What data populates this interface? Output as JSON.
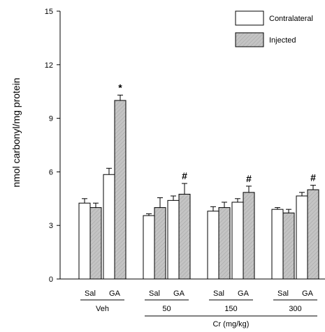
{
  "chart_data": {
    "type": "bar",
    "ylabel": "nmol carbonyl/mg protein",
    "ylim": [
      0,
      15
    ],
    "yticks": [
      "0",
      "3",
      "6",
      "9",
      "12",
      "15"
    ],
    "categories": [
      "Sal",
      "GA",
      "Sal",
      "GA",
      "Sal",
      "GA",
      "Sal",
      "GA"
    ],
    "groups": [
      {
        "label": "Veh",
        "span": [
          0,
          1
        ]
      },
      {
        "label": "50",
        "span": [
          2,
          3
        ]
      },
      {
        "label": "150",
        "span": [
          4,
          5
        ]
      },
      {
        "label": "300",
        "span": [
          6,
          7
        ]
      }
    ],
    "supergroup": {
      "label": "Cr (mg/kg)",
      "span": [
        2,
        7
      ]
    },
    "series": [
      {
        "name": "Contralateral",
        "color": "#ffffff",
        "values": [
          4.25,
          5.85,
          3.55,
          4.4,
          3.8,
          4.3,
          3.9,
          4.65
        ],
        "errors": [
          0.25,
          0.35,
          0.1,
          0.25,
          0.25,
          0.2,
          0.1,
          0.2
        ],
        "marks": [
          "",
          "",
          "",
          "",
          "",
          "",
          "",
          ""
        ]
      },
      {
        "name": "Injected",
        "color": "#bdbdbd",
        "values": [
          4.0,
          10.0,
          4.0,
          4.75,
          4.0,
          4.85,
          3.7,
          5.0
        ],
        "errors": [
          0.25,
          0.3,
          0.55,
          0.6,
          0.3,
          0.35,
          0.2,
          0.25
        ],
        "marks": [
          "",
          "*",
          "",
          "#",
          "",
          "#",
          "",
          "#"
        ]
      }
    ],
    "legend_position": "top-right",
    "grid": false
  }
}
